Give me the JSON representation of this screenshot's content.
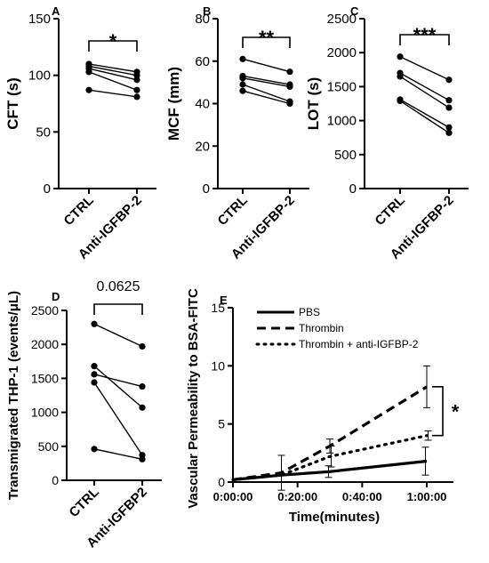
{
  "chart_data": [
    {
      "type": "line",
      "panel": "A",
      "categories": [
        "CTRL",
        "Anti-IGFBP-2"
      ],
      "ylabel": "CFT (s)",
      "ylim": [
        0,
        150
      ],
      "yticks": [
        0,
        50,
        100,
        150
      ],
      "series": [
        {
          "values": [
            110,
            103
          ]
        },
        {
          "values": [
            108,
            100
          ]
        },
        {
          "values": [
            106,
            96
          ]
        },
        {
          "values": [
            103,
            87
          ]
        },
        {
          "values": [
            87,
            81
          ]
        }
      ],
      "significance": "*"
    },
    {
      "type": "line",
      "panel": "B",
      "categories": [
        "CTRL",
        "Anti-IGFBP-2"
      ],
      "ylabel": "MCF (mm)",
      "ylim": [
        0,
        80
      ],
      "yticks": [
        0,
        20,
        40,
        60,
        80
      ],
      "series": [
        {
          "values": [
            61,
            55
          ]
        },
        {
          "values": [
            53,
            49
          ]
        },
        {
          "values": [
            52,
            48
          ]
        },
        {
          "values": [
            49,
            41
          ]
        },
        {
          "values": [
            46,
            40
          ]
        }
      ],
      "significance": "**"
    },
    {
      "type": "line",
      "panel": "C",
      "categories": [
        "CTRL",
        "Anti-IGFBP-2"
      ],
      "ylabel": "LOT (s)",
      "ylim": [
        0,
        2500
      ],
      "yticks": [
        0,
        500,
        1000,
        1500,
        2000,
        2500
      ],
      "series": [
        {
          "values": [
            1940,
            1600
          ]
        },
        {
          "values": [
            1700,
            1300
          ]
        },
        {
          "values": [
            1650,
            1190
          ]
        },
        {
          "values": [
            1310,
            900
          ]
        },
        {
          "values": [
            1290,
            820
          ]
        }
      ],
      "significance": "***"
    },
    {
      "type": "line",
      "panel": "D",
      "categories": [
        "CTRL",
        "Anti-IGFBP2"
      ],
      "ylabel": "Transmigrated THP-1 (events/μL)",
      "ylim": [
        0,
        2500
      ],
      "yticks": [
        0,
        500,
        1000,
        1500,
        2000,
        2500
      ],
      "series": [
        {
          "values": [
            2300,
            1970
          ]
        },
        {
          "values": [
            1680,
            1070
          ]
        },
        {
          "values": [
            1560,
            1380
          ]
        },
        {
          "values": [
            1440,
            370
          ]
        },
        {
          "values": [
            460,
            310
          ]
        }
      ],
      "significance": "0.0625"
    },
    {
      "type": "line",
      "panel": "E",
      "xlabel": "Time(minutes)",
      "ylabel": "Vascular Permeability to BSA-FITC",
      "x": [
        "0:00:00",
        "0:15:00",
        "0:30:00",
        "1:00:00"
      ],
      "xticks": [
        "0:00:00",
        "0:20:00",
        "0:40:00",
        "1:00:00"
      ],
      "ylim": [
        0,
        15
      ],
      "yticks": [
        0,
        5,
        10,
        15
      ],
      "series": [
        {
          "name": "PBS",
          "style": "solid",
          "values": [
            0.2,
            0.6,
            0.9,
            1.8
          ],
          "errors": [
            0,
            0,
            0.5,
            1.2
          ]
        },
        {
          "name": "Thrombin",
          "style": "dashed",
          "values": [
            0.2,
            0.8,
            3.1,
            8.2
          ],
          "errors": [
            0,
            1.5,
            0.6,
            1.8
          ]
        },
        {
          "name": "Thrombin + anti-IGFBP-2",
          "style": "dotted",
          "values": [
            0.2,
            0.6,
            2.2,
            4.0
          ],
          "errors": [
            0,
            0,
            0.9,
            0.4
          ]
        }
      ],
      "legend": "top-right",
      "significance": "*"
    }
  ]
}
